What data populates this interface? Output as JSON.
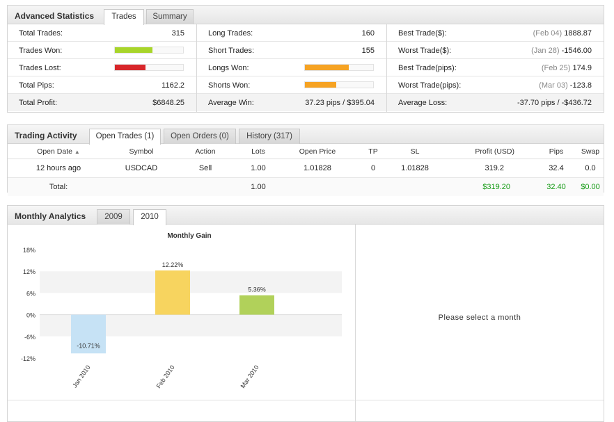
{
  "advanced": {
    "title": "Advanced Statistics",
    "tabs": [
      "Trades",
      "Summary"
    ],
    "col1": {
      "total_trades_label": "Total Trades:",
      "total_trades": "315",
      "trades_won_label": "Trades Won:",
      "trades_won_pct": 0.55,
      "trades_lost_label": "Trades Lost:",
      "trades_lost_pct": 0.45,
      "total_pips_label": "Total Pips:",
      "total_pips": "1162.2",
      "total_profit_label": "Total Profit:",
      "total_profit": "$6848.25"
    },
    "col2": {
      "long_trades_label": "Long Trades:",
      "long_trades": "160",
      "short_trades_label": "Short Trades:",
      "short_trades": "155",
      "longs_won_label": "Longs Won:",
      "longs_won_pct": 0.64,
      "shorts_won_label": "Shorts Won:",
      "shorts_won_pct": 0.46,
      "average_win_label": "Average Win:",
      "average_win": "37.23 pips / $395.04"
    },
    "col3": {
      "best_trade_usd_label": "Best Trade($):",
      "best_trade_usd_date": "(Feb 04)",
      "best_trade_usd": "1888.87",
      "worst_trade_usd_label": "Worst Trade($):",
      "worst_trade_usd_date": "(Jan 28)",
      "worst_trade_usd": "-1546.00",
      "best_trade_pips_label": "Best Trade(pips):",
      "best_trade_pips_date": "(Feb 25)",
      "best_trade_pips": "174.9",
      "worst_trade_pips_label": "Worst Trade(pips):",
      "worst_trade_pips_date": "(Mar 03)",
      "worst_trade_pips": "-123.8",
      "average_loss_label": "Average Loss:",
      "average_loss": "-37.70 pips / -$436.72"
    },
    "colors": {
      "won": "#a8d52a",
      "lost": "#d8262a",
      "orange": "#f6a323"
    }
  },
  "activity": {
    "title": "Trading Activity",
    "tabs": [
      "Open Trades (1)",
      "Open Orders (0)",
      "History (317)"
    ],
    "columns": [
      "Open Date",
      "Symbol",
      "Action",
      "Lots",
      "Open Price",
      "TP",
      "SL",
      "Profit (USD)",
      "Pips",
      "Swap"
    ],
    "sort_indicator": "▲",
    "row": [
      "12 hours ago",
      "USDCAD",
      "Sell",
      "1.00",
      "1.01828",
      "0",
      "1.01828",
      "319.2",
      "32.4",
      "0.0"
    ],
    "total": {
      "label": "Total:",
      "lots": "1.00",
      "profit": "$319.20",
      "pips": "32.40",
      "swap": "$0.00"
    }
  },
  "monthly": {
    "title": "Monthly Analytics",
    "tabs": [
      "2009",
      "2010"
    ],
    "select_message": "Please select a month"
  },
  "chart_data": {
    "type": "bar",
    "title": "Monthly Gain",
    "categories": [
      "Jan 2010",
      "Feb 2010",
      "Mar 2010"
    ],
    "values": [
      -10.71,
      12.22,
      5.36
    ],
    "value_labels": [
      "-10.71%",
      "12.22%",
      "5.36%"
    ],
    "colors": [
      "#c6e2f5",
      "#f7d45f",
      "#b1d15a"
    ],
    "yticks": [
      "18%",
      "12%",
      "6%",
      "0%",
      "-6%",
      "-12%"
    ],
    "ylim": [
      -12,
      18
    ],
    "xlabel": "",
    "ylabel": "",
    "grid": "alternating bands"
  }
}
